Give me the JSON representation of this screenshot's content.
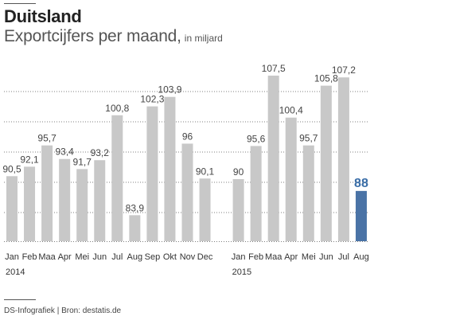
{
  "header": {
    "title": "Duitsland",
    "subtitle": "Exportcijfers per maand,",
    "unit": "in miljard"
  },
  "footer": {
    "source": "DS-Infografiek | Bron: destatis.de"
  },
  "colors": {
    "bar": "#c8c8c8",
    "highlight_bar": "#4a73a6",
    "highlight_label": "#3a6ea8",
    "grid": "#555555"
  },
  "chart_data": {
    "type": "bar",
    "title": "",
    "xlabel": "",
    "ylabel": "",
    "grid": "horizontal dotted",
    "years": [
      {
        "label": "2014",
        "start_index": 0
      },
      {
        "label": "2015",
        "start_index": 12
      }
    ],
    "categories": [
      "Jan",
      "Feb",
      "Maa",
      "Apr",
      "Mei",
      "Jun",
      "Jul",
      "Aug",
      "Sep",
      "Okt",
      "Nov",
      "Dec",
      "Jan",
      "Feb",
      "Maa",
      "Apr",
      "Mei",
      "Jun",
      "Jul",
      "Aug"
    ],
    "labels": [
      "90,5",
      "92,1",
      "95,7",
      "93,4",
      "91,7",
      "93,2",
      "100,8",
      "83,9",
      "102,3",
      "103,9",
      "96",
      "90,1",
      "90",
      "95,6",
      "107,5",
      "100,4",
      "95,7",
      "105,8",
      "107,2",
      "88"
    ],
    "values": [
      90.5,
      92.1,
      95.7,
      93.4,
      91.7,
      93.2,
      100.8,
      83.9,
      102.3,
      103.9,
      96,
      90.1,
      90,
      95.6,
      107.5,
      100.4,
      95.7,
      105.8,
      107.2,
      88
    ],
    "highlight_index": 19,
    "ylim": [
      79.5,
      108
    ]
  }
}
